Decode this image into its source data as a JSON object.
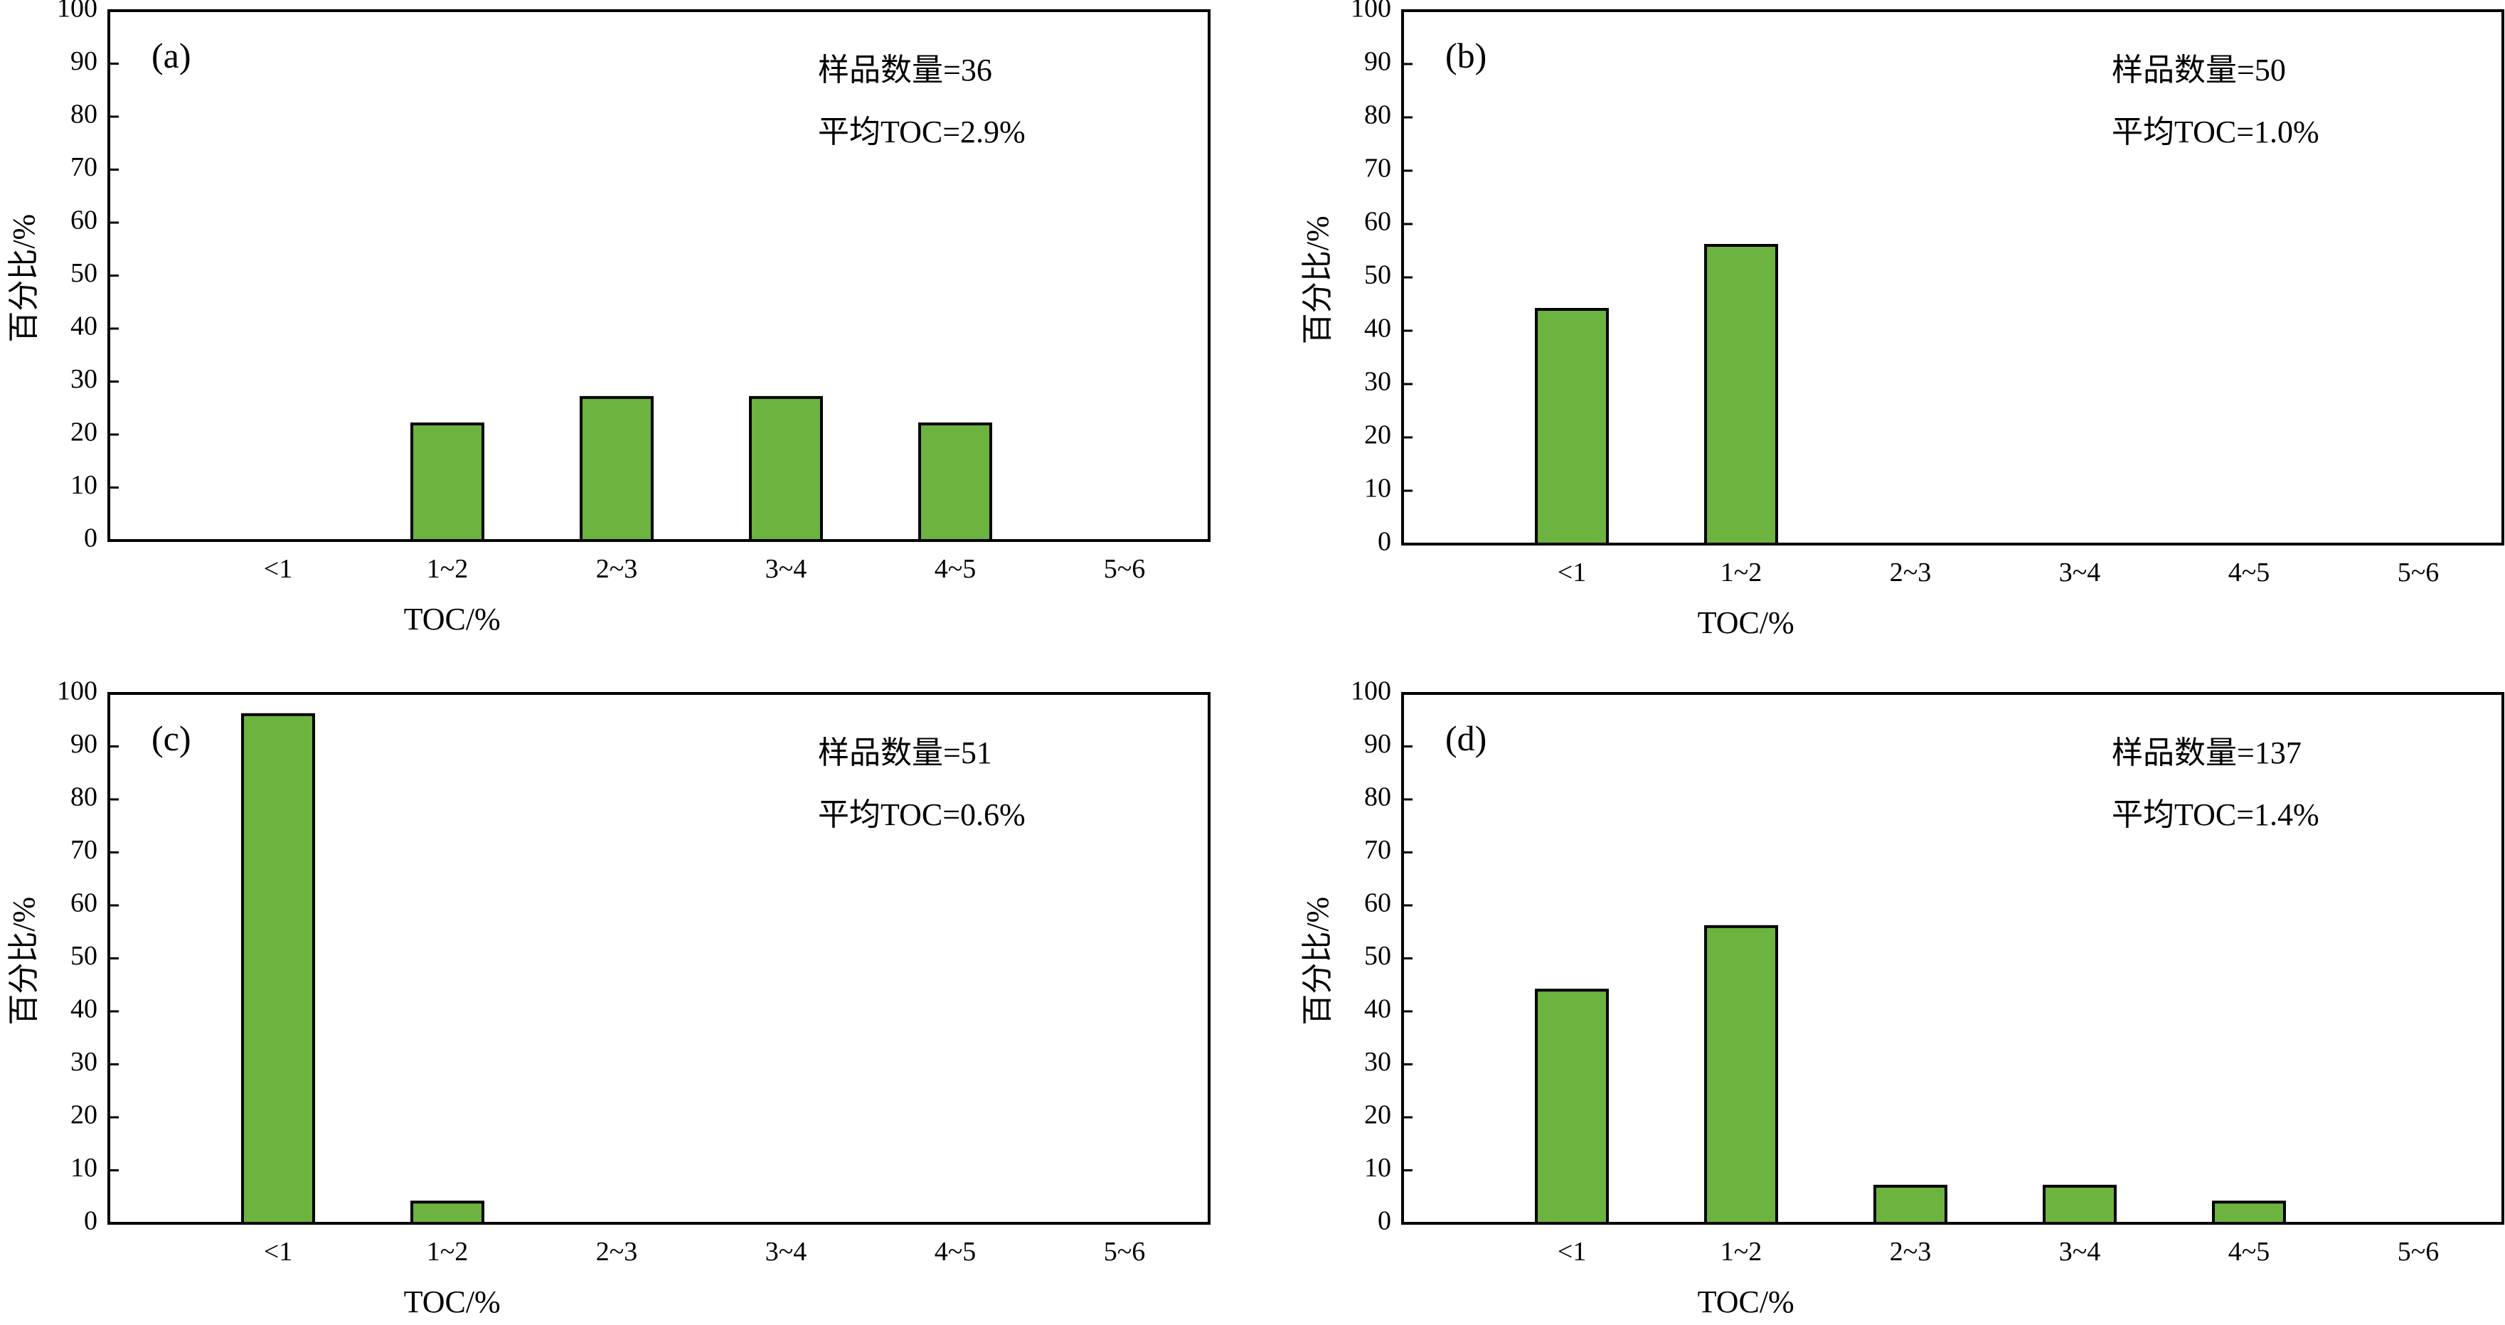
{
  "style": {
    "bar_color": "#6db33f",
    "stroke_color": "#000000"
  },
  "chart_data": [
    {
      "type": "bar",
      "panel_label": "(a)",
      "categories": [
        "<1",
        "1~2",
        "2~3",
        "3~4",
        "4~5",
        "5~6"
      ],
      "values": [
        0,
        22,
        27,
        27,
        22,
        0
      ],
      "xlabel": "TOC/%",
      "ylabel": "百分比/%",
      "ylim": [
        0,
        100
      ],
      "yticks": [
        "0",
        "10",
        "20",
        "30",
        "40",
        "50",
        "60",
        "70",
        "80",
        "90",
        "100"
      ],
      "sample_count_text": "样品数量=36",
      "avg_toc_text": "平均TOC=2.9%"
    },
    {
      "type": "bar",
      "panel_label": "(b)",
      "categories": [
        "<1",
        "1~2",
        "2~3",
        "3~4",
        "4~5",
        "5~6"
      ],
      "values": [
        44,
        56,
        0,
        0,
        0,
        0
      ],
      "xlabel": "TOC/%",
      "ylabel": "百分比/%",
      "ylim": [
        0,
        100
      ],
      "yticks": [
        "0",
        "10",
        "20",
        "30",
        "40",
        "50",
        "60",
        "70",
        "80",
        "90",
        "100"
      ],
      "sample_count_text": "样品数量=50",
      "avg_toc_text": "平均TOC=1.0%"
    },
    {
      "type": "bar",
      "panel_label": "(c)",
      "categories": [
        "<1",
        "1~2",
        "2~3",
        "3~4",
        "4~5",
        "5~6"
      ],
      "values": [
        96,
        4,
        0,
        0,
        0,
        0
      ],
      "xlabel": "TOC/%",
      "ylabel": "百分比/%",
      "ylim": [
        0,
        100
      ],
      "yticks": [
        "0",
        "10",
        "20",
        "30",
        "40",
        "50",
        "60",
        "70",
        "80",
        "90",
        "100"
      ],
      "sample_count_text": "样品数量=51",
      "avg_toc_text": "平均TOC=0.6%"
    },
    {
      "type": "bar",
      "panel_label": "(d)",
      "categories": [
        "<1",
        "1~2",
        "2~3",
        "3~4",
        "4~5",
        "5~6"
      ],
      "values": [
        44,
        56,
        7,
        7,
        4,
        0
      ],
      "xlabel": "TOC/%",
      "ylabel": "百分比/%",
      "ylim": [
        0,
        100
      ],
      "yticks": [
        "0",
        "10",
        "20",
        "30",
        "40",
        "50",
        "60",
        "70",
        "80",
        "90",
        "100"
      ],
      "sample_count_text": "样品数量=137",
      "avg_toc_text": "平均TOC=1.4%"
    }
  ]
}
